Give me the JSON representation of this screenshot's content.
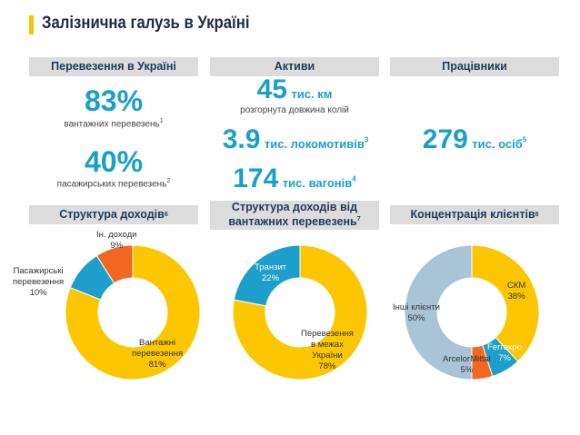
{
  "title": "Залізнична галузь в Україні",
  "headers": {
    "transport": "Перевезення в Україні",
    "assets": "Активи",
    "workers": "Працівники",
    "revenue_structure": "Структура доходів",
    "revenue_structure_sup": "6",
    "freight_revenue_line1": "Структура доходів від",
    "freight_revenue_line2": "вантажних перевезень",
    "freight_revenue_sup": "7",
    "client_concentration": "Концентрація клієнтів",
    "client_concentration_sup": "8"
  },
  "transport": {
    "freight_value": "83%",
    "freight_label": "вантажних перевезень",
    "freight_sup": "1",
    "passenger_value": "40%",
    "passenger_label": "пасажирських перевезень",
    "passenger_sup": "2"
  },
  "assets": {
    "track_value": "45",
    "track_unit": "тис. км",
    "track_label": "розгорнута довжина колій",
    "loco_value": "3.9",
    "loco_unit": "тис. локомотивів",
    "loco_sup": "3",
    "wagon_value": "174",
    "wagon_unit": "тис. вагонів",
    "wagon_sup": "4"
  },
  "workers": {
    "value": "279",
    "unit": "тис. осіб",
    "sup": "5"
  },
  "colors": {
    "yellow": "#fcc600",
    "blue": "#1d9ecb",
    "orange": "#f26722",
    "grey": "#a9c4d6",
    "accent": "#1aa0c8"
  },
  "chart_data": [
    {
      "type": "pie",
      "title": "Структура доходів",
      "series": [
        {
          "name": "Вантажні перевезення",
          "value": 81,
          "label_line1": "Вантажні",
          "label_line2": "перевезення",
          "pct": "81%"
        },
        {
          "name": "Пасажирські перевезення",
          "value": 10,
          "label_line1": "Пасажирські",
          "label_line2": "перевезення",
          "pct": "10%"
        },
        {
          "name": "Ін. доходи",
          "value": 9,
          "label_line1": "Ін. доходи",
          "label_line2": "",
          "pct": "9%"
        }
      ]
    },
    {
      "type": "pie",
      "title": "Структура доходів від вантажних перевезень",
      "series": [
        {
          "name": "Перевезення в межах України",
          "value": 78,
          "label_line1": "Перевезення",
          "label_line2": "в межах",
          "label_line3": "України",
          "pct": "78%"
        },
        {
          "name": "Транзит",
          "value": 22,
          "label_line1": "Транзит",
          "pct": "22%"
        }
      ]
    },
    {
      "type": "pie",
      "title": "Концентрація клієнтів",
      "series": [
        {
          "name": "СКМ",
          "value": 38,
          "pct": "38%"
        },
        {
          "name": "Ferrexpo",
          "value": 7,
          "pct": "7%"
        },
        {
          "name": "ArcelorMittal",
          "value": 5,
          "pct": "5%"
        },
        {
          "name": "Інші клієнти",
          "value": 50,
          "pct": "50%"
        }
      ]
    }
  ]
}
